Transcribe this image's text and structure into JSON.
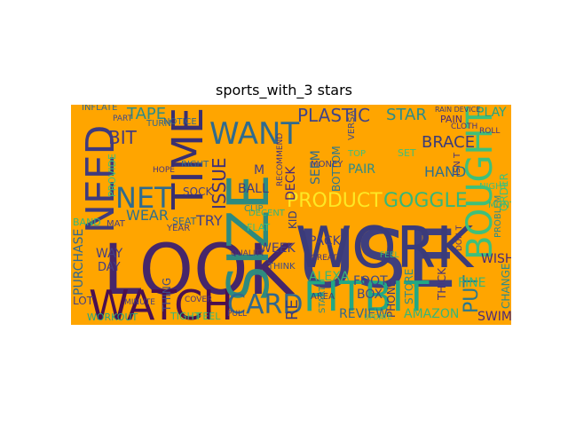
{
  "figure": {
    "title": "sports_with_3 stars"
  },
  "wordcloud": {
    "background": "#FFA500",
    "words": [
      {
        "text": "USE",
        "color": "#3f3f7e"
      },
      {
        "text": "LOOK",
        "color": "#46266a"
      },
      {
        "text": "WORK",
        "color": "#3b3b7a"
      },
      {
        "text": "FITBIT",
        "color": "#22a884"
      },
      {
        "text": "WATCH",
        "color": "#4a0f4f"
      },
      {
        "text": "SIZE",
        "color": "#2e8a7f"
      },
      {
        "text": "TIME",
        "color": "#3a2f70"
      },
      {
        "text": "NEED",
        "color": "#3f3a7d"
      },
      {
        "text": "NET",
        "color": "#2f6b8e"
      },
      {
        "text": "WANT",
        "color": "#2f6b8e"
      },
      {
        "text": "BOUGHT",
        "color": "#3ec07a"
      },
      {
        "text": "CARD",
        "color": "#31688e"
      },
      {
        "text": "PRODUCT",
        "color": "#fde725"
      },
      {
        "text": "GOGGLE",
        "color": "#35b779"
      },
      {
        "text": "PLASTIC",
        "color": "#414487"
      },
      {
        "text": "BIT",
        "color": "#433a80"
      },
      {
        "text": "TAPE",
        "color": "#2c8c8a"
      },
      {
        "text": "STAR",
        "color": "#2c8c8a"
      },
      {
        "text": "BRACE",
        "color": "#3b3b7a"
      },
      {
        "text": "ISSUE",
        "color": "#3f2f78"
      },
      {
        "text": "HAND",
        "color": "#2d708e"
      },
      {
        "text": "WEAR",
        "color": "#2d708e"
      },
      {
        "text": "TRY",
        "color": "#433e85"
      },
      {
        "text": "BALL",
        "color": "#3e3a80"
      },
      {
        "text": "WISH",
        "color": "#482878"
      },
      {
        "text": "PLAY",
        "color": "#20a386"
      },
      {
        "text": "SWIM",
        "color": "#4a2a7a"
      },
      {
        "text": "PUT",
        "color": "#2a788e"
      },
      {
        "text": "REVIEW",
        "color": "#31688e"
      },
      {
        "text": "ALEXA",
        "color": "#35b779"
      },
      {
        "text": "AMAZON",
        "color": "#35b779"
      },
      {
        "text": "PHONE",
        "color": "#3b3b7a"
      },
      {
        "text": "BOX",
        "color": "#3e4989"
      },
      {
        "text": "FOOT",
        "color": "#3e4989"
      },
      {
        "text": "FINE",
        "color": "#35b779"
      },
      {
        "text": "THICK",
        "color": "#46337e"
      },
      {
        "text": "CHANGE",
        "color": "#2c8c8a"
      },
      {
        "text": "PACK",
        "color": "#433e85"
      },
      {
        "text": "WEEK",
        "color": "#443a83"
      },
      {
        "text": "DECK",
        "color": "#482878"
      },
      {
        "text": "SEEM",
        "color": "#2f6b8e"
      },
      {
        "text": "BOTTOM",
        "color": "#2a788e"
      },
      {
        "text": "PAIR",
        "color": "#2c8c8a"
      },
      {
        "text": "PURCHASE",
        "color": "#31688e"
      },
      {
        "text": "WAY",
        "color": "#433e85"
      },
      {
        "text": "DAY",
        "color": "#433e85"
      },
      {
        "text": "LOT",
        "color": "#433e85"
      },
      {
        "text": "WORKOUT",
        "color": "#20a386"
      },
      {
        "text": "TIGHT",
        "color": "#35b779"
      },
      {
        "text": "FEEL",
        "color": "#35b779"
      },
      {
        "text": "THING",
        "color": "#3e4989"
      },
      {
        "text": "SOCK",
        "color": "#433e85"
      },
      {
        "text": "SEAT",
        "color": "#31688e"
      },
      {
        "text": "PROVIDE",
        "color": "#3ec07a"
      },
      {
        "text": "PAIN",
        "color": "#482878"
      },
      {
        "text": "ROLL",
        "color": "#46337e"
      },
      {
        "text": "PROBLEM",
        "color": "#2c8c8a"
      },
      {
        "text": "ORDER",
        "color": "#3ec07a"
      },
      {
        "text": "MONTH",
        "color": "#35b779"
      },
      {
        "text": "NIGHT",
        "color": "#3ec07a"
      },
      {
        "text": "KID",
        "color": "#3b3b7a"
      },
      {
        "text": "AREA",
        "color": "#3b3b7a"
      },
      {
        "text": "RE",
        "color": "#3b3b7a"
      },
      {
        "text": "STORE",
        "color": "#2c8c8a"
      },
      {
        "text": "SET",
        "color": "#3ec07a"
      },
      {
        "text": "MONEY",
        "color": "#443a83"
      },
      {
        "text": "VERSA",
        "color": "#3e4989"
      },
      {
        "text": "ISN T",
        "color": "#46337e"
      },
      {
        "text": "M",
        "color": "#433e85"
      },
      {
        "text": "MAT",
        "color": "#433e85"
      },
      {
        "text": "YEAR",
        "color": "#433e85"
      },
      {
        "text": "RIGHT",
        "color": "#31688e"
      },
      {
        "text": "TURN",
        "color": "#31688e"
      },
      {
        "text": "START",
        "color": "#2c8c8a"
      },
      {
        "text": "BAND",
        "color": "#35b779"
      },
      {
        "text": "FLAT",
        "color": "#3ec07a"
      },
      {
        "text": "CLOTH",
        "color": "#46337e"
      },
      {
        "text": "FEEL",
        "color": "#35b779"
      },
      {
        "text": "DON T",
        "color": "#46337e"
      },
      {
        "text": "CLIP",
        "color": "#2c8c8a"
      },
      {
        "text": "DECENT",
        "color": "#35b779"
      },
      {
        "text": "QUALITY",
        "color": "#46337e"
      },
      {
        "text": "THINK",
        "color": "#3e4989"
      },
      {
        "text": "MINUTE",
        "color": "#433e85"
      },
      {
        "text": "PULL",
        "color": "#433e85"
      },
      {
        "text": "NOTICE",
        "color": "#31688e"
      },
      {
        "text": "HOPE",
        "color": "#46337e"
      },
      {
        "text": "COVER",
        "color": "#46337e"
      },
      {
        "text": "TOP",
        "color": "#3ec07a"
      },
      {
        "text": "RAIN DEVICE",
        "color": "#3b3b7a"
      },
      {
        "text": "INFLATE",
        "color": "#31688e"
      },
      {
        "text": "RECOMMEND",
        "color": "#46337e"
      },
      {
        "text": "GREAT",
        "color": "#46337e"
      },
      {
        "text": "UPDATE",
        "color": "#3ec07a"
      },
      {
        "text": "PART",
        "color": "#3e4989"
      }
    ]
  }
}
